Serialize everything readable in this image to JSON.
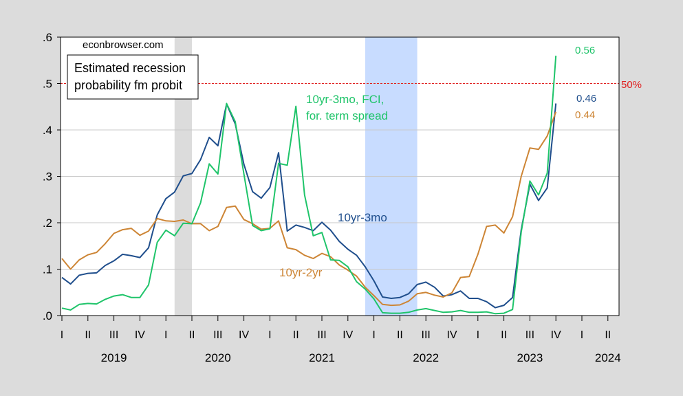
{
  "chart_data": {
    "type": "line",
    "source": "econbrowser.com",
    "legend_box": [
      "Estimated recession",
      "probability fm probit"
    ],
    "threshold": {
      "value": 0.5,
      "label": "50%",
      "color": "#e02020"
    },
    "ylim": [
      0,
      0.6
    ],
    "yticks": [
      0.0,
      0.1,
      0.2,
      0.3,
      0.4,
      0.5,
      0.6
    ],
    "ytick_labels": [
      ".0",
      ".1",
      ".2",
      ".3",
      ".4",
      ".5",
      ".6"
    ],
    "x_start": "2019-01",
    "x_end": "2024-04",
    "quarter_labels": [
      "I",
      "II",
      "III",
      "IV",
      "I",
      "II",
      "III",
      "IV",
      "I",
      "II",
      "III",
      "IV",
      "I",
      "II",
      "III",
      "IV",
      "I",
      "II",
      "III",
      "IV",
      "I",
      "II"
    ],
    "years": [
      "2019",
      "2020",
      "2021",
      "2022",
      "2023",
      "2024"
    ],
    "shaded_periods": [
      {
        "start": "2020-02",
        "end": "2020-04",
        "color": "#dcdcdc"
      },
      {
        "start": "2021-12",
        "end": "2022-06",
        "color": "#c8dcff"
      }
    ],
    "months": [
      "2019-01",
      "2019-02",
      "2019-03",
      "2019-04",
      "2019-05",
      "2019-06",
      "2019-07",
      "2019-08",
      "2019-09",
      "2019-10",
      "2019-11",
      "2019-12",
      "2020-01",
      "2020-02",
      "2020-03",
      "2020-04",
      "2020-05",
      "2020-06",
      "2020-07",
      "2020-08",
      "2020-09",
      "2020-10",
      "2020-11",
      "2020-12",
      "2021-01",
      "2021-02",
      "2021-03",
      "2021-04",
      "2021-05",
      "2021-06",
      "2021-07",
      "2021-08",
      "2021-09",
      "2021-10",
      "2021-11",
      "2021-12",
      "2022-01",
      "2022-02",
      "2022-03",
      "2022-04",
      "2022-05",
      "2022-06",
      "2022-07",
      "2022-08",
      "2022-09",
      "2022-10",
      "2022-11",
      "2022-12",
      "2023-01",
      "2023-02",
      "2023-03",
      "2023-04",
      "2023-05",
      "2023-06",
      "2023-07",
      "2023-08",
      "2023-09",
      "2023-10",
      "2023-11",
      "2023-12"
    ],
    "series": [
      {
        "name": "10yr-3mo",
        "color": "#1f4e8c",
        "end_label": "0.46",
        "values": [
          0.082,
          0.068,
          0.087,
          0.091,
          0.092,
          0.108,
          0.118,
          0.132,
          0.129,
          0.125,
          0.146,
          0.217,
          0.252,
          0.266,
          0.301,
          0.306,
          0.336,
          0.384,
          0.366,
          0.456,
          0.413,
          0.326,
          0.267,
          0.253,
          0.276,
          0.351,
          0.182,
          0.195,
          0.19,
          0.183,
          0.201,
          0.184,
          0.16,
          0.143,
          0.13,
          0.105,
          0.075,
          0.04,
          0.037,
          0.039,
          0.047,
          0.067,
          0.072,
          0.061,
          0.042,
          0.045,
          0.053,
          0.037,
          0.037,
          0.03,
          0.017,
          0.022,
          0.039,
          0.185,
          0.283,
          0.248,
          0.275,
          0.457,
          null,
          null
        ]
      },
      {
        "name": "10yr-2yr",
        "color": "#cd8535",
        "end_label": "0.44",
        "values": [
          0.123,
          0.1,
          0.12,
          0.131,
          0.136,
          0.155,
          0.177,
          0.185,
          0.188,
          0.173,
          0.182,
          0.209,
          0.204,
          0.203,
          0.206,
          0.198,
          0.198,
          0.183,
          0.192,
          0.233,
          0.236,
          0.207,
          0.198,
          0.186,
          0.188,
          0.204,
          0.146,
          0.142,
          0.13,
          0.123,
          0.134,
          0.127,
          0.109,
          0.098,
          0.085,
          0.061,
          0.043,
          0.024,
          0.022,
          0.023,
          0.031,
          0.047,
          0.05,
          0.044,
          0.04,
          0.049,
          0.082,
          0.084,
          0.132,
          0.192,
          0.195,
          0.178,
          0.213,
          0.3,
          0.361,
          0.358,
          0.387,
          0.439,
          null,
          null
        ]
      },
      {
        "name": "10yr-3mo, FCI, for. term spread",
        "color": "#1fc46a",
        "end_label": "0.56",
        "values": [
          0.016,
          0.012,
          0.024,
          0.026,
          0.025,
          0.035,
          0.042,
          0.045,
          0.039,
          0.039,
          0.066,
          0.158,
          0.184,
          0.172,
          0.199,
          0.198,
          0.243,
          0.327,
          0.305,
          0.457,
          0.418,
          0.305,
          0.194,
          0.183,
          0.187,
          0.328,
          0.324,
          0.451,
          0.26,
          0.172,
          0.179,
          0.12,
          0.119,
          0.105,
          0.073,
          0.057,
          0.036,
          0.006,
          0.005,
          0.005,
          0.007,
          0.012,
          0.015,
          0.011,
          0.007,
          0.008,
          0.011,
          0.007,
          0.007,
          0.008,
          0.004,
          0.005,
          0.013,
          0.18,
          0.29,
          0.26,
          0.307,
          0.56,
          null,
          null
        ]
      }
    ],
    "annotations": [
      {
        "text_lines": [
          "10yr-3mo, FCI,",
          "for. term spread"
        ],
        "color": "#1fc46a"
      },
      {
        "text_lines": [
          "10yr-3mo"
        ],
        "color": "#1f4e8c"
      },
      {
        "text_lines": [
          "10yr-2yr"
        ],
        "color": "#cd8535"
      }
    ]
  }
}
